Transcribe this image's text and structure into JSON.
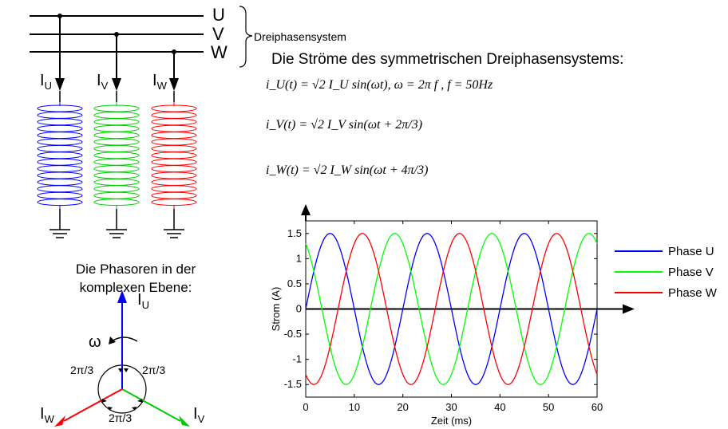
{
  "bus": {
    "labels": [
      "U",
      "V",
      "W"
    ],
    "system_label": "Dreiphasensystem"
  },
  "branches": [
    {
      "current": "I",
      "sub": "U",
      "color": "#0000ff"
    },
    {
      "current": "I",
      "sub": "V",
      "color": "#00cc00"
    },
    {
      "current": "I",
      "sub": "W",
      "color": "#ff0000"
    }
  ],
  "heading": "Die Ströme des symmetrischen Dreiphasensystems:",
  "formulas": {
    "iu": "i_U(t) = √2 I_U sin(ωt),  ω = 2π f , f = 50Hz",
    "iv": "i_V(t) = √2 I_V sin(ωt + 2π/3)",
    "iw": "i_W(t) = √2 I_W sin(ωt + 4π/3)"
  },
  "phasor": {
    "title_line1": "Die Phasoren in der",
    "title_line2": "komplexen Ebene:",
    "omega": "ω",
    "angle_label": "2π/3",
    "labels": {
      "u": "U",
      "v": "V",
      "w": "W",
      "current": "I"
    },
    "colors": {
      "u": "#0000ff",
      "v": "#00cc00",
      "w": "#ff0000"
    }
  },
  "chart_data": {
    "type": "line",
    "xlabel": "Zeit (ms)",
    "ylabel": "Strom (A)",
    "xlim": [
      0,
      60
    ],
    "ylim": [
      -1.75,
      1.75
    ],
    "xticks": [
      0,
      10,
      20,
      30,
      40,
      50,
      60
    ],
    "yticks": [
      1.5,
      1,
      0.5,
      0,
      -0.5,
      -1,
      -1.5
    ],
    "amplitude": 1.5,
    "frequency_hz": 50,
    "legend_position": "right",
    "series": [
      {
        "name": "Phase U",
        "phase_deg": 0,
        "color": "#0000ff"
      },
      {
        "name": "Phase V",
        "phase_deg": 120,
        "color": "#00ff00"
      },
      {
        "name": "Phase W",
        "phase_deg": 240,
        "color": "#ff0000"
      }
    ]
  }
}
